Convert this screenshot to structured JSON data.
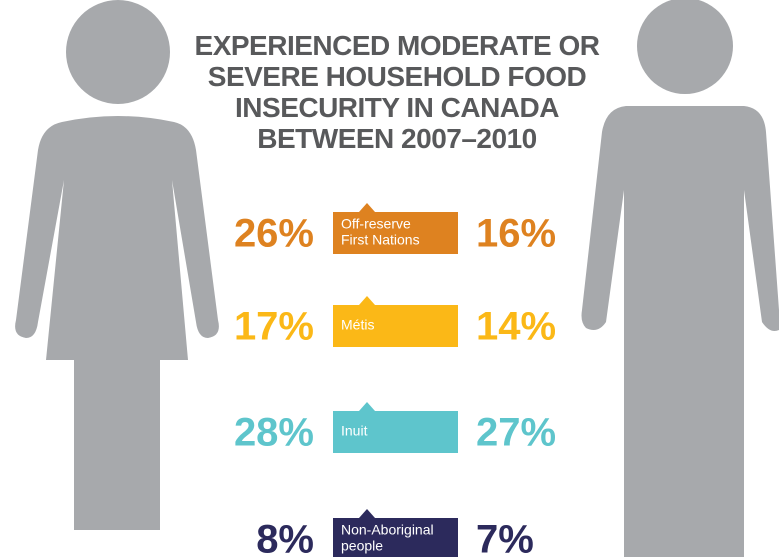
{
  "title": [
    "EXPERIENCED MODERATE OR",
    "SEVERE HOUSEHOLD FOOD",
    "INSECURITY IN CANADA",
    "BETWEEN 2007–2010"
  ],
  "groups": [
    {
      "label": [
        "Off-reserve",
        "First Nations"
      ],
      "women": "26%",
      "men": "16%",
      "color": "#de8220"
    },
    {
      "label": [
        "Métis"
      ],
      "women": "17%",
      "men": "14%",
      "color": "#fbb817"
    },
    {
      "label": [
        "Inuit"
      ],
      "women": "28%",
      "men": "27%",
      "color": "#5ec5cc"
    },
    {
      "label": [
        "Non-Aboriginal",
        "people"
      ],
      "women": "8%",
      "men": "7%",
      "color": "#2c2a5c"
    }
  ]
}
